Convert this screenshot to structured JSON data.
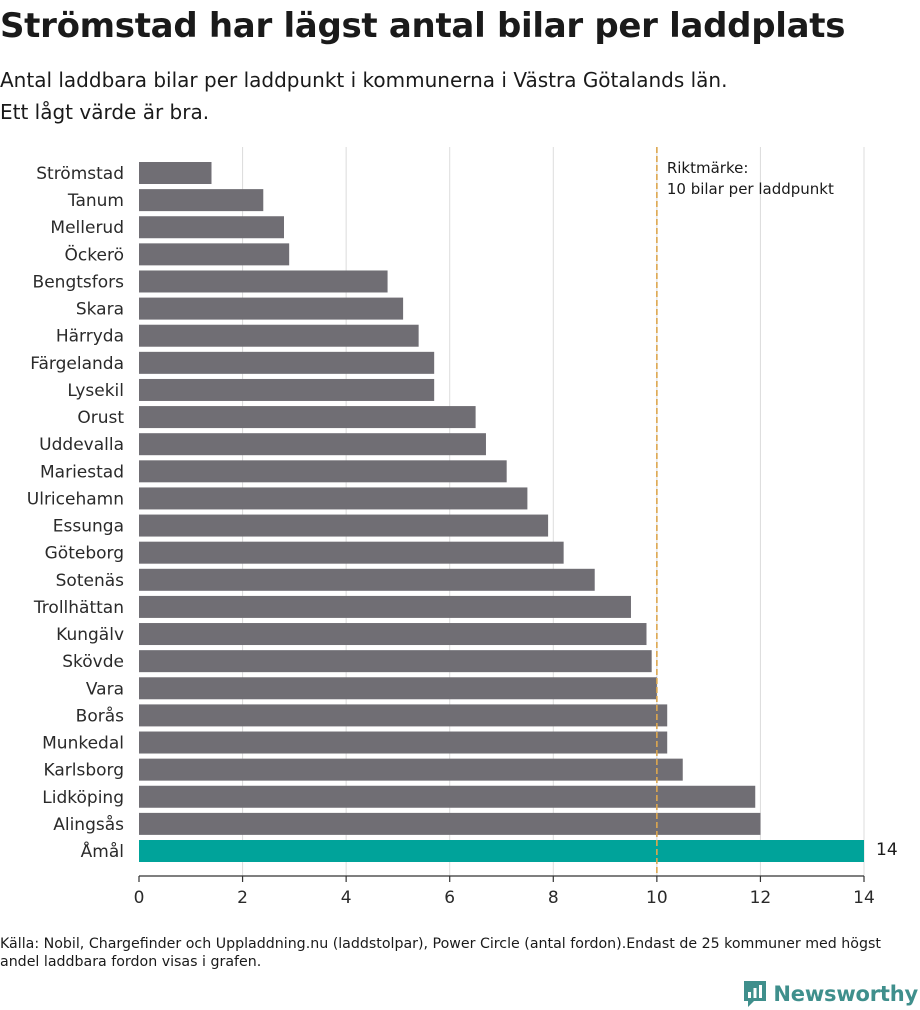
{
  "title": "Strömstad har lägst antal bilar per laddplats",
  "subtitle_line1": "Antal laddbara bilar per laddpunkt i kommunerna i Västra Götalands län.",
  "subtitle_line2": "Ett lågt värde är bra.",
  "footer": "Källa: Nobil, Chargefinder och Uppladdning.nu (laddstolpar), Power Circle (antal fordon).Endast de 25 kommuner med högst andel laddbara fordon visas i grafen.",
  "brand": "Newsworthy",
  "colors": {
    "bar": "#706e74",
    "highlight": "#00a39a",
    "reference": "#dda74f",
    "grid": "#dcdcdc",
    "brand": "#3f8f8c"
  },
  "chart_data": {
    "type": "bar",
    "orientation": "horizontal",
    "categories": [
      "Strömstad",
      "Tanum",
      "Mellerud",
      "Öckerö",
      "Bengtsfors",
      "Skara",
      "Härryda",
      "Färgelanda",
      "Lysekil",
      "Orust",
      "Uddevalla",
      "Mariestad",
      "Ulricehamn",
      "Essunga",
      "Göteborg",
      "Sotenäs",
      "Trollhättan",
      "Kungälv",
      "Skövde",
      "Vara",
      "Borås",
      "Munkedal",
      "Karlsborg",
      "Lidköping",
      "Alingsås",
      "Åmål"
    ],
    "values": [
      1.4,
      2.4,
      2.8,
      2.9,
      4.8,
      5.1,
      5.4,
      5.7,
      5.7,
      6.5,
      6.7,
      7.1,
      7.5,
      7.9,
      8.2,
      8.8,
      9.5,
      9.8,
      9.9,
      10.0,
      10.2,
      10.2,
      10.5,
      11.9,
      12.0,
      14.0
    ],
    "highlight_index": 25,
    "highlight_label": "14",
    "xlim": [
      0,
      14
    ],
    "xticks": [
      0,
      2,
      4,
      6,
      8,
      10,
      12,
      14
    ],
    "grid": true,
    "reference_line": {
      "x": 10,
      "label_line1": "Riktmärke:",
      "label_line2": "10 bilar per laddpunkt"
    }
  }
}
